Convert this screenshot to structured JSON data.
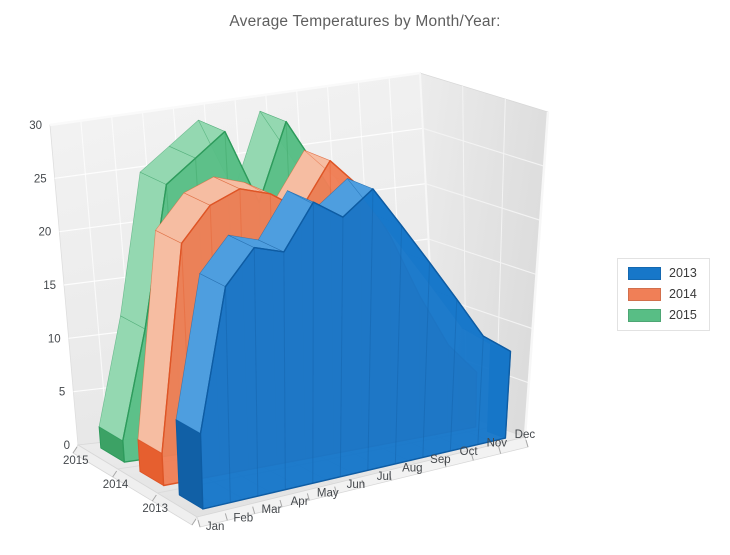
{
  "title": "Average Temperatures by Month/Year:",
  "legend": {
    "position": "right",
    "items": [
      {
        "label": "2013",
        "color": "#1777c9"
      },
      {
        "label": "2014",
        "color": "#f07f57"
      },
      {
        "label": "2015",
        "color": "#58be85"
      }
    ]
  },
  "axes": {
    "y_ticks": [
      "0",
      "5",
      "10",
      "15",
      "20",
      "25",
      "30"
    ],
    "months": [
      "Jan",
      "Feb",
      "Mar",
      "Apr",
      "May",
      "Jun",
      "Jul",
      "Aug",
      "Sep",
      "Oct",
      "Nov",
      "Dec"
    ],
    "years": [
      "2013",
      "2014",
      "2015"
    ]
  },
  "chart_data": {
    "type": "area",
    "variant": "3d",
    "title": "Average Temperatures by Month/Year:",
    "categories": [
      "Jan",
      "Feb",
      "Mar",
      "Apr",
      "May",
      "Jun",
      "Jul",
      "Aug",
      "Sep",
      "Oct",
      "Nov",
      "Dec"
    ],
    "series": [
      {
        "name": "2013",
        "depth": 0,
        "color": "#1777c9",
        "top_color": "#4e9edf",
        "cap_color": "#1160a6",
        "outline_color": "#0e5ca3",
        "values": [
          7,
          20,
          23,
          22,
          26,
          24,
          26,
          22,
          18,
          14,
          10,
          8
        ]
      },
      {
        "name": "2014",
        "depth": 1,
        "color": "#f07f57",
        "top_color": "#f6bda2",
        "cap_color": "#e65f2f",
        "outline_color": "#de5526",
        "values": [
          3,
          22,
          25,
          26,
          25,
          23,
          27,
          24,
          19,
          13,
          8,
          5
        ]
      },
      {
        "name": "2015",
        "depth": 2,
        "color": "#58be85",
        "top_color": "#94d8b1",
        "cap_color": "#3ca265",
        "outline_color": "#2e9b5c",
        "values": [
          2,
          12,
          25,
          27,
          29,
          22,
          29,
          24,
          19,
          13,
          7,
          3
        ]
      }
    ],
    "ylim": [
      0,
      30
    ],
    "y_step": 5,
    "grid": true,
    "legend_position": "right"
  }
}
